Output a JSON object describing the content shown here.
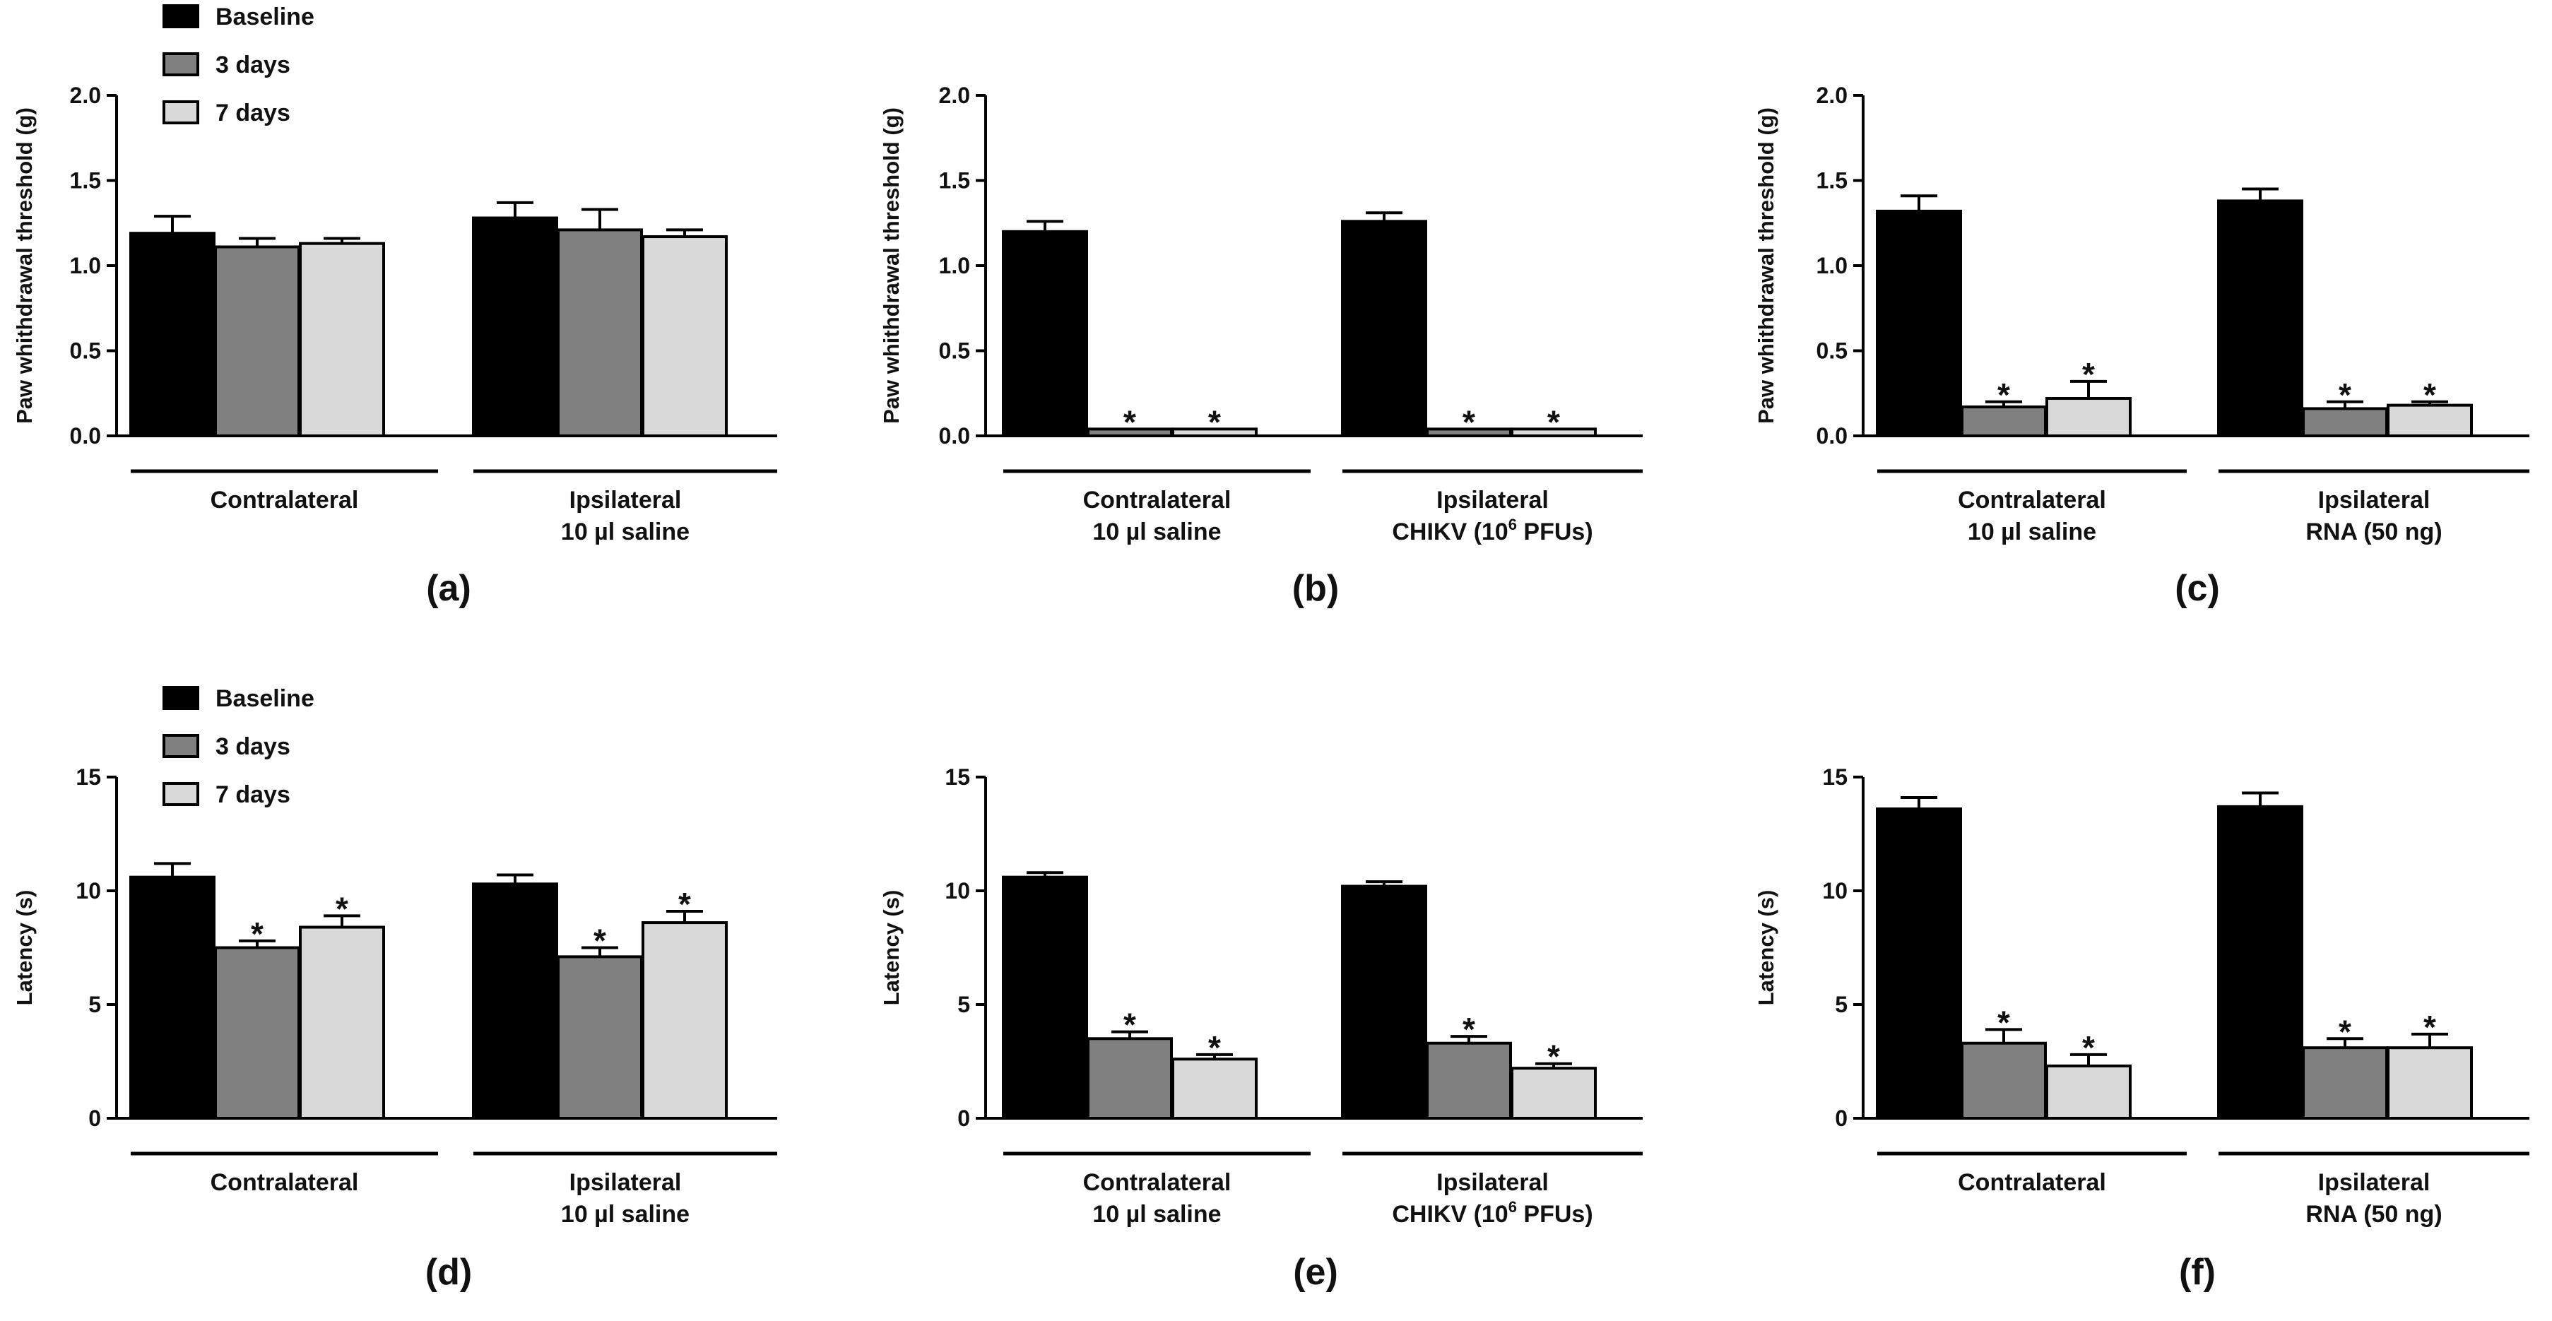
{
  "legend": {
    "items": [
      {
        "label": "Baseline",
        "color": "#000000"
      },
      {
        "label": "3 days",
        "color": "#808080"
      },
      {
        "label": "7 days",
        "color": "#d9d9d9"
      }
    ]
  },
  "chart_data": [
    {
      "type": "bar",
      "panel_label": "(a)",
      "ylabel": "Paw whithdrawal threshold (g)",
      "ylim": [
        0,
        2.0
      ],
      "yticks": [
        "0.0",
        "0.5",
        "1.0",
        "1.5",
        "2.0"
      ],
      "legend": true,
      "groups": [
        {
          "line1": "Contralateral",
          "line2": "",
          "values": [
            1.19,
            1.11,
            1.13
          ],
          "errors": [
            0.1,
            0.05,
            0.03
          ],
          "significant": [
            false,
            false,
            false
          ]
        },
        {
          "line1": "Ipsilateral",
          "line2": "10 µl saline",
          "values": [
            1.28,
            1.21,
            1.17
          ],
          "errors": [
            0.09,
            0.12,
            0.04
          ],
          "significant": [
            false,
            false,
            false
          ]
        }
      ]
    },
    {
      "type": "bar",
      "panel_label": "(b)",
      "ylabel": "Paw whithdrawal threshold (g)",
      "ylim": [
        0,
        2.0
      ],
      "yticks": [
        "0.0",
        "0.5",
        "1.0",
        "1.5",
        "2.0"
      ],
      "legend": false,
      "groups": [
        {
          "line1": "Contralateral",
          "line2": "10 µl saline",
          "values": [
            1.2,
            0.04,
            0.04
          ],
          "errors": [
            0.06,
            0.0,
            0.0
          ],
          "significant": [
            false,
            true,
            true
          ]
        },
        {
          "line1": "Ipsilateral",
          "line2": "CHIKV (10",
          "line2_sup": "6",
          "line2_end": " PFUs)",
          "values": [
            1.26,
            0.04,
            0.04
          ],
          "errors": [
            0.05,
            0.0,
            0.0
          ],
          "significant": [
            false,
            true,
            true
          ]
        }
      ]
    },
    {
      "type": "bar",
      "panel_label": "(c)",
      "ylabel": "Paw whithdrawal threshold (g)",
      "ylim": [
        0,
        2.0
      ],
      "yticks": [
        "0.0",
        "0.5",
        "1.0",
        "1.5",
        "2.0"
      ],
      "legend": false,
      "groups": [
        {
          "line1": "Contralateral",
          "line2": "10 µl saline",
          "values": [
            1.32,
            0.17,
            0.22
          ],
          "errors": [
            0.09,
            0.03,
            0.1
          ],
          "significant": [
            false,
            true,
            true
          ]
        },
        {
          "line1": "Ipsilateral",
          "line2": "RNA (50 ng)",
          "values": [
            1.38,
            0.16,
            0.18
          ],
          "errors": [
            0.07,
            0.04,
            0.02
          ],
          "significant": [
            false,
            true,
            true
          ]
        }
      ]
    },
    {
      "type": "bar",
      "panel_label": "(d)",
      "ylabel": "Latency (s)",
      "ylim": [
        0,
        15
      ],
      "yticks": [
        "0",
        "5",
        "10",
        "15"
      ],
      "legend": true,
      "groups": [
        {
          "line1": "Contralateral",
          "line2": "",
          "values": [
            10.6,
            7.5,
            8.4
          ],
          "errors": [
            0.6,
            0.3,
            0.5
          ],
          "significant": [
            false,
            true,
            true
          ]
        },
        {
          "line1": "Ipsilateral",
          "line2": "10 µl saline",
          "values": [
            10.3,
            7.1,
            8.6
          ],
          "errors": [
            0.4,
            0.4,
            0.5
          ],
          "significant": [
            false,
            true,
            true
          ]
        }
      ]
    },
    {
      "type": "bar",
      "panel_label": "(e)",
      "ylabel": "Latency (s)",
      "ylim": [
        0,
        15
      ],
      "yticks": [
        "0",
        "5",
        "10",
        "15"
      ],
      "legend": false,
      "groups": [
        {
          "line1": "Contralateral",
          "line2": "10 µl saline",
          "values": [
            10.6,
            3.5,
            2.6
          ],
          "errors": [
            0.2,
            0.3,
            0.2
          ],
          "significant": [
            false,
            true,
            true
          ]
        },
        {
          "line1": "Ipsilateral",
          "line2": "CHIKV (10",
          "line2_sup": "6",
          "line2_end": " PFUs)",
          "values": [
            10.2,
            3.3,
            2.2
          ],
          "errors": [
            0.2,
            0.3,
            0.2
          ],
          "significant": [
            false,
            true,
            true
          ]
        }
      ]
    },
    {
      "type": "bar",
      "panel_label": "(f)",
      "ylabel": "Latency (s)",
      "ylim": [
        0,
        15
      ],
      "yticks": [
        "0",
        "5",
        "10",
        "15"
      ],
      "legend": false,
      "groups": [
        {
          "line1": "Contralateral",
          "line2": "",
          "values": [
            13.6,
            3.3,
            2.3
          ],
          "errors": [
            0.5,
            0.6,
            0.5
          ],
          "significant": [
            false,
            true,
            true
          ]
        },
        {
          "line1": "Ipsilateral",
          "line2": "RNA (50 ng)",
          "values": [
            13.7,
            3.1,
            3.1
          ],
          "errors": [
            0.6,
            0.4,
            0.6
          ],
          "significant": [
            false,
            true,
            true
          ]
        }
      ]
    }
  ]
}
